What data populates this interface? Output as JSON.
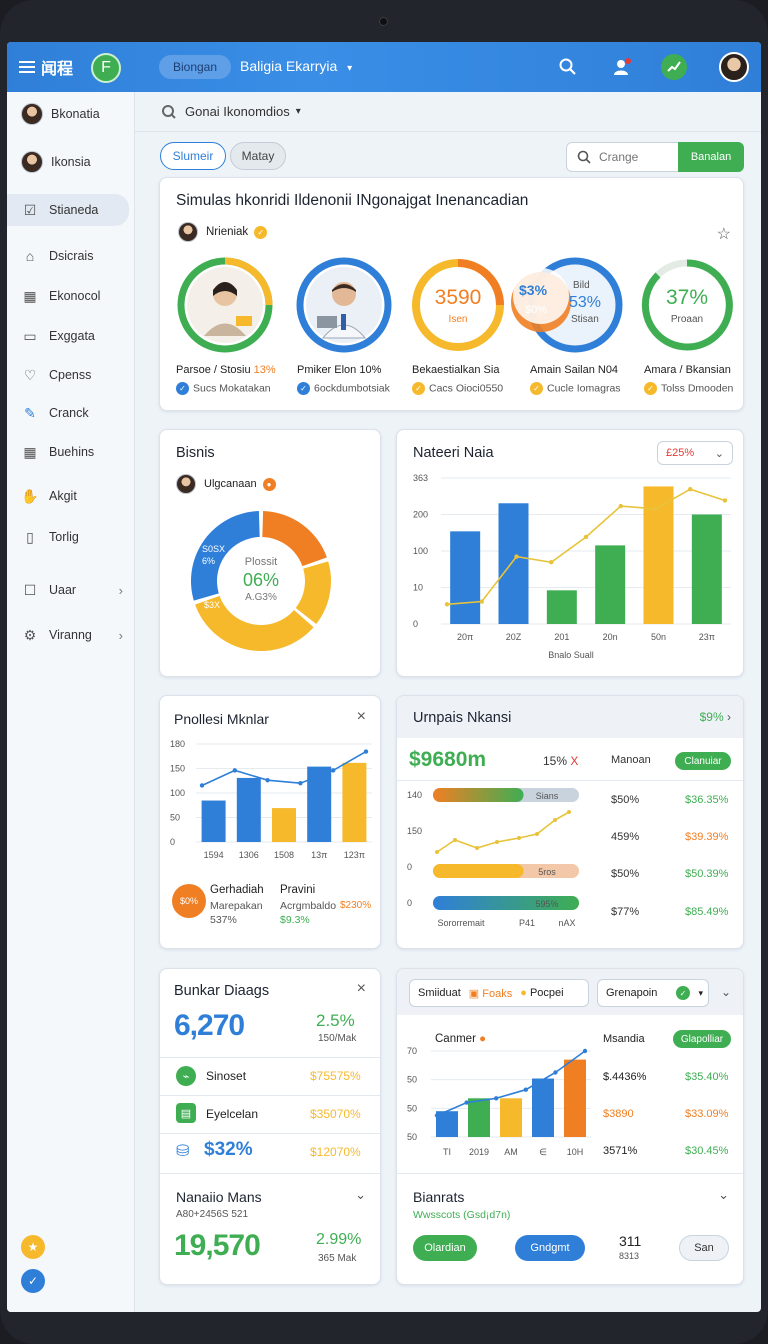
{
  "topbar": {
    "brand": "闻程",
    "logo_letter": "F",
    "pill": "Biongan",
    "title": "Baligia Ekarryia",
    "title_caret": "▾"
  },
  "sidebar": {
    "users": [
      {
        "label": "Bkonatia"
      },
      {
        "label": "Ikonsia"
      }
    ],
    "items": [
      {
        "label": "Stianeda",
        "icon": "☑"
      },
      {
        "label": "Dsicrais",
        "icon": "⌂"
      },
      {
        "label": "Ekonocol",
        "icon": "▦"
      },
      {
        "label": "Exggata",
        "icon": "▭"
      },
      {
        "label": "Cpenss",
        "icon": "♡"
      },
      {
        "label": "Cranck",
        "icon": "✎"
      },
      {
        "label": "Buehins",
        "icon": "▦"
      },
      {
        "label": "Akgit",
        "icon": "✋"
      },
      {
        "label": "Torlig",
        "icon": "▯"
      },
      {
        "label": "Uaar",
        "icon": "☐",
        "chevron": "›"
      },
      {
        "label": "Viranng",
        "icon": "⚙",
        "chevron": "›"
      }
    ]
  },
  "subbar": {
    "label": "Gonai Ikonomdios",
    "caret": "▾"
  },
  "toolbar": {
    "tab1": "Slumeir",
    "tab2": "Matay",
    "search_placeholder": "Crange",
    "search_button": "Banalan"
  },
  "card1": {
    "title": "Simulas hkonridi Ildenonii INgonajgat Inenancadian",
    "author": "Nrieniak",
    "profiles": [
      {
        "name": "Parsoe / Stosiu",
        "pct": "13%",
        "sub": "Sucs Mokatakan"
      },
      {
        "name": "Pmiker Elon",
        "pct": "10%",
        "sub": "6ockdumbotsiak"
      },
      {
        "name": "Bekaestialkan Sia",
        "sub": "Cacs Oioci0550",
        "value": "3590",
        "unit": "Isen"
      },
      {
        "name": "Amain Sailan N04",
        "sub": "Cucle Iomagras",
        "value": "$3%",
        "value2": "53%",
        "label": "Bild",
        "sub2": "Stisan",
        "mid": "$0%"
      },
      {
        "name": "Amara / Bkansian",
        "sub": "Tolss Dmooden",
        "value": "37%",
        "unit": "Proaan"
      }
    ]
  },
  "bisnis": {
    "title": "Bisnis",
    "author": "Ulgcanaan",
    "center_label": "Plossit",
    "center_value": "06%",
    "center_sub": "A.G3%",
    "label_a": "S0SX",
    "label_a2": "6%",
    "label_b": "$3X",
    "chart_data": {
      "type": "pie",
      "values": [
        20,
        16,
        34,
        30
      ]
    }
  },
  "nateeri": {
    "title": "Nateeri Naia",
    "badge": "£25%",
    "xlabel": "Bnalo Suall",
    "chart_data": {
      "type": "bar",
      "categories": [
        "20π",
        "20Z",
        "201",
        "20n",
        "50n",
        "23π"
      ],
      "values": [
        165,
        215,
        60,
        140,
        245,
        195
      ],
      "line": [
        35,
        40,
        120,
        110,
        155,
        210,
        205,
        240,
        220
      ],
      "ticks": [
        "363",
        "200",
        "100",
        "10",
        "0"
      ],
      "colors": [
        "#2f7fd8",
        "#2f7fd8",
        "#3fae53",
        "#3fae53",
        "#f6b92c",
        "#3fae53"
      ]
    }
  },
  "pnolles": {
    "title": "Pnollesi Mknlar",
    "close": "×",
    "stat1_badge": "$0%",
    "stat1_title": "Gerhadiah",
    "stat1_sub": "Marepakan",
    "stat1_sub2": "537%",
    "stat2_title": "Pravini",
    "stat2_sub": "Acrgmbaldo",
    "stat2_val": "$9.3%",
    "stat2_pct": "$230%",
    "chart_data": {
      "type": "bar",
      "categories": [
        "1594",
        "1306",
        "1508",
        "13π",
        "123π"
      ],
      "values": [
        55,
        85,
        45,
        100,
        105
      ],
      "line": [
        75,
        95,
        82,
        78,
        95,
        120
      ],
      "ticks": [
        "180",
        "150",
        "100",
        "50",
        "0"
      ]
    }
  },
  "umpais": {
    "title": "Urnpais Nkansi",
    "header_badge": "$9%",
    "big": "$9680m",
    "pct": "15%",
    "x": "X",
    "col": "Manoan",
    "btn": "Clanuiar",
    "rows": [
      {
        "bar_label": "Sians",
        "pct": "$50%",
        "val": "$36.35%"
      },
      {
        "bar_label": "",
        "pct": "459%",
        "val": "$39.39%"
      },
      {
        "bar_label": "5ros",
        "pct": "$50%",
        "val": "$50.39%"
      },
      {
        "bar_label": "595%",
        "pct": "$77%",
        "val": "$85.49%"
      }
    ],
    "ticks": [
      "140",
      "150",
      "0",
      "0"
    ],
    "xlabels": [
      "Sororremait",
      "P41",
      "nAX"
    ]
  },
  "bunkar": {
    "title": "Bunkar Diaags",
    "close": "×",
    "big": "6,270",
    "pct": "2.5%",
    "pct_sub": "150/Mak",
    "items": [
      {
        "label": "Sinoset",
        "val": "$75575%"
      },
      {
        "label": "Eyelcelan",
        "val": "$35070%"
      },
      {
        "label": "$32%",
        "val": "$12070%"
      }
    ],
    "footer_title": "Nanaiio Mans",
    "footer_sub": "A80+2456S 521",
    "footer_big": "19,570",
    "footer_pct": "2.99%",
    "footer_pct_sub": "365 Mak"
  },
  "simulat": {
    "tab1": "Smiiduat",
    "tab2": "Foaks",
    "tab3": "Pocpei",
    "select": "Grenapoin",
    "select_caret": "▾",
    "chart_title": "Canmer",
    "col": "Msandia",
    "tag": "Glapolliar",
    "rows": [
      {
        "pct": "$.4436%",
        "val": "$35.40%"
      },
      {
        "pct": "$3890",
        "val": "$33.09%"
      },
      {
        "pct": "3571%",
        "val": "$30.45%"
      }
    ],
    "chart_data": {
      "type": "bar",
      "categories": [
        "TI",
        "2019",
        "AM",
        "∈",
        "10H"
      ],
      "values": [
        30,
        45,
        45,
        68,
        90
      ],
      "line": [
        25,
        40,
        45,
        55,
        75,
        100
      ],
      "ticks": [
        "70",
        "50",
        "50",
        "50"
      ],
      "colors": [
        "#2f7fd8",
        "#3fae53",
        "#f6b92c",
        "#2f7fd8",
        "#f07f23"
      ]
    },
    "footer_title": "Bianrats",
    "footer_sub": "Wwsscots (Gsd¡d7n)",
    "btn1": "Olardian",
    "btn2": "Gndgmt",
    "num": "311",
    "num_sub": "8313",
    "btn3": "San"
  }
}
